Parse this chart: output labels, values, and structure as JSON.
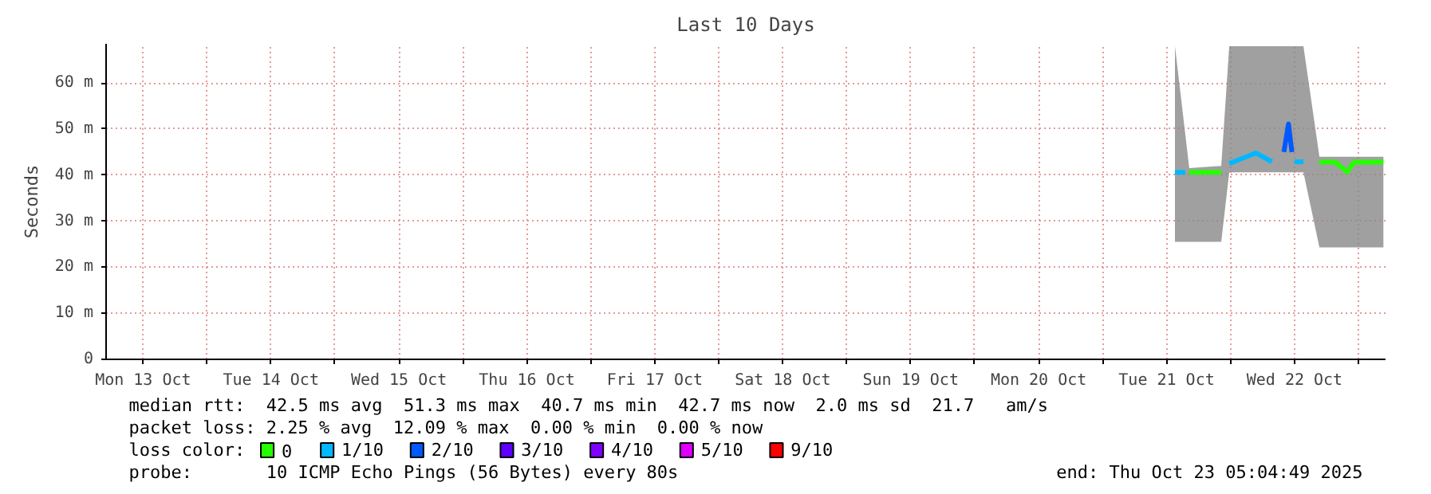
{
  "chart_data": {
    "type": "line",
    "title": "Last 10 Days",
    "ylabel": "Seconds",
    "legend_title": "loss color:",
    "legend": "bottom",
    "grid": true,
    "x": [
      "2025-10-21T13:34",
      "2025-10-21T16:15",
      "2025-10-21T22:15",
      "2025-10-21T23:45",
      "2025-10-22T04:45",
      "2025-10-22T07:45",
      "2025-10-22T10:52",
      "2025-10-22T13:40",
      "2025-10-22T16:40",
      "2025-10-22T19:40",
      "2025-10-22T21:52",
      "2025-10-22T23:10",
      "2025-10-23T04:40"
    ],
    "xlim": [
      "2025-10-13T05:04",
      "2025-10-23T05:04"
    ],
    "xticks": [
      {
        "value": "2025-10-13T12:00",
        "label": "Mon 13 Oct"
      },
      {
        "value": "2025-10-14T00:00",
        "label": null
      },
      {
        "value": "2025-10-14T12:00",
        "label": "Tue 14 Oct"
      },
      {
        "value": "2025-10-15T00:00",
        "label": null
      },
      {
        "value": "2025-10-15T12:00",
        "label": "Wed 15 Oct"
      },
      {
        "value": "2025-10-16T00:00",
        "label": null
      },
      {
        "value": "2025-10-16T12:00",
        "label": "Thu 16 Oct"
      },
      {
        "value": "2025-10-17T00:00",
        "label": null
      },
      {
        "value": "2025-10-17T12:00",
        "label": "Fri 17 Oct"
      },
      {
        "value": "2025-10-18T00:00",
        "label": null
      },
      {
        "value": "2025-10-18T12:00",
        "label": "Sat 18 Oct"
      },
      {
        "value": "2025-10-19T00:00",
        "label": null
      },
      {
        "value": "2025-10-19T12:00",
        "label": "Sun 19 Oct"
      },
      {
        "value": "2025-10-20T00:00",
        "label": null
      },
      {
        "value": "2025-10-20T12:00",
        "label": "Mon 20 Oct"
      },
      {
        "value": "2025-10-21T00:00",
        "label": null
      },
      {
        "value": "2025-10-21T12:00",
        "label": "Tue 21 Oct"
      },
      {
        "value": "2025-10-22T00:00",
        "label": null
      },
      {
        "value": "2025-10-22T12:00",
        "label": "Wed 22 Oct"
      },
      {
        "value": "2025-10-23T00:00",
        "label": null
      }
    ],
    "ylim": [
      0,
      68.5
    ],
    "yticks": [
      0,
      {
        "value": 10,
        "label": "10 m"
      },
      {
        "value": 20,
        "label": "20 m"
      },
      {
        "value": 30,
        "label": "30 m"
      },
      {
        "value": 40,
        "label": "40 m"
      },
      {
        "value": 50,
        "label": "50 m"
      },
      {
        "value": 60,
        "label": "60 m"
      }
    ],
    "series": [
      {
        "color": "#888888",
        "values": [
          null,
          null,
          null,
          null,
          null,
          null,
          null,
          null,
          null,
          null,
          null,
          null,
          null
        ],
        "lower": [
          25.5,
          25.5,
          25.5,
          40.6,
          40.6,
          40.6,
          40.6,
          40.6,
          24.3,
          24.3,
          24.3,
          24.3,
          24.3
        ],
        "upper": [
          68,
          41.5,
          42,
          68,
          68,
          68,
          68,
          68,
          44,
          44,
          44,
          44,
          44
        ]
      },
      {
        "name": "0",
        "color": "#26ff00",
        "x": [
          "2025-10-21T16:15",
          "2025-10-21T22:15",
          "2025-10-22T15:00",
          "2025-10-22T16:40",
          "2025-10-22T19:40",
          "2025-10-22T21:52",
          "2025-10-22T23:10",
          "2025-10-23T04:40"
        ],
        "values": [
          40.6,
          40.6,
          null,
          42.8,
          42.8,
          40.7,
          42.8,
          42.8
        ]
      },
      {
        "name": "1/10",
        "color": "#00b8ff",
        "x": [
          "2025-10-21T13:34",
          "2025-10-21T15:30",
          "2025-10-21T23:00",
          "2025-10-21T23:45",
          "2025-10-22T04:45",
          "2025-10-22T07:45",
          "2025-10-22T09:00",
          "2025-10-22T12:00",
          "2025-10-22T13:40"
        ],
        "values": [
          40.6,
          40.6,
          null,
          42.5,
          44.8,
          42.9,
          null,
          42.9,
          42.9
        ]
      },
      {
        "name": "2/10",
        "color": "#0059ff",
        "x": [
          "2025-10-22T10:00",
          "2025-10-22T10:52",
          "2025-10-22T11:30"
        ],
        "values": [
          45.0,
          51.1,
          45.0
        ]
      },
      {
        "name": "3/10",
        "color": "#5e00ff",
        "values": [
          null,
          null,
          null,
          null,
          null,
          null,
          null,
          null,
          null,
          null,
          null,
          null,
          null
        ]
      },
      {
        "name": "4/10",
        "color": "#7e00ff",
        "values": [
          null,
          null,
          null,
          null,
          null,
          null,
          null,
          null,
          null,
          null,
          null,
          null,
          null
        ]
      },
      {
        "name": "5/10",
        "color": "#dd00ff",
        "values": [
          null,
          null,
          null,
          null,
          null,
          null,
          null,
          null,
          null,
          null,
          null,
          null,
          null
        ]
      },
      {
        "name": "9/10",
        "color": "#ff0000",
        "values": [
          null,
          null,
          null,
          null,
          null,
          null,
          null,
          null,
          null,
          null,
          null,
          null,
          null
        ]
      }
    ],
    "annotations": [
      "median rtt:  42.5 ms avg  51.3 ms max  40.7 ms min  42.7 ms now  2.0 ms sd  21.7   am/s",
      "packet loss: 2.25 % avg  12.09 % max  0.00 % min  0.00 % now",
      "probe:       10 ICMP Echo Pings (56 Bytes) every 80s",
      "end: Thu Oct 23 05:04:49 2025"
    ]
  }
}
